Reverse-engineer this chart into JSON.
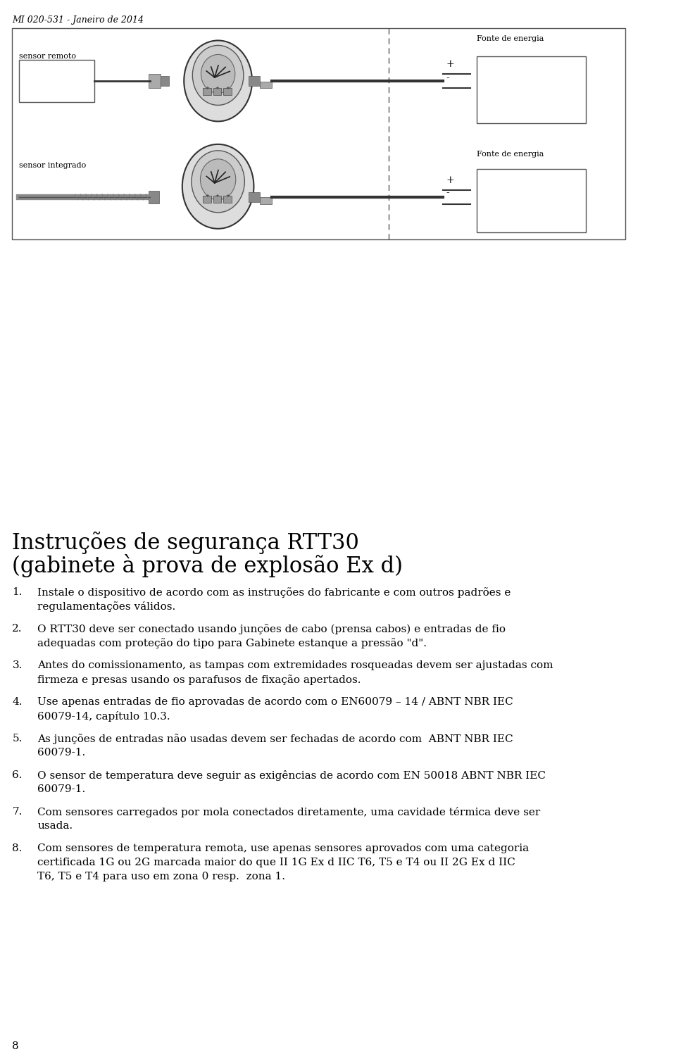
{
  "header": "MI 020-531 - Janeiro de 2014",
  "page_number": "8",
  "bg_color": "#ffffff",
  "text_color": "#000000",
  "section_title_line1": "Instruções de segurança RTT30",
  "section_title_line2": "(gabinete à prova de explosão Ex d)",
  "items": [
    {
      "num": "1.",
      "text": "Instale o dispositivo de acordo com as instruções do fabricante e com outros padrões e\nregulamentações válidos."
    },
    {
      "num": "2.",
      "text": "O RTT30 deve ser conectado usando junções de cabo (prensa cabos) e entradas de fio\nadequadas com proteção do tipo para Gabinete estanque a pressão \"d\"."
    },
    {
      "num": "3.",
      "text": "Antes do comissionamento, as tampas com extremidades rosqueadas devem ser ajustadas com\nfirmeza e presas usando os parafusos de fixação apertados."
    },
    {
      "num": "4.",
      "text": "Use apenas entradas de fio aprovadas de acordo com o EN60079 – 14 / ABNT NBR IEC\n60079-14, capítulo 10.3."
    },
    {
      "num": "5.",
      "text": "As junções de entradas não usadas devem ser fechadas de acordo com  ABNT NBR IEC\n60079-1."
    },
    {
      "num": "6.",
      "text": "O sensor de temperatura deve seguir as exigências de acordo com EN 50018 ABNT NBR IEC\n60079-1."
    },
    {
      "num": "7.",
      "text": "Com sensores carregados por mola conectados diretamente, uma cavidade térmica deve ser\nusada."
    },
    {
      "num": "8.",
      "text": "Com sensores de temperatura remota, use apenas sensores aprovados com uma categoria\ncertificada 1G ou 2G marcada maior do que II 1G Ex d IIC T6, T5 e T4 ou II 2G Ex d IIC\nT6, T5 e T4 para uso em zona 0 resp.  zona 1."
    }
  ],
  "diagram": {
    "sensor_remoto_label": "sensor remoto",
    "sensor_integrado_label": "sensor integrado",
    "fonte_energia_label": "Fonte de energia",
    "plus_label": "+",
    "minus_label": "-"
  }
}
